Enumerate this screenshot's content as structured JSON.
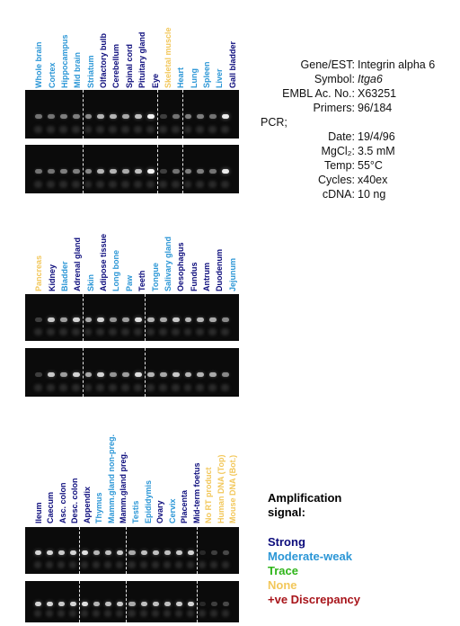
{
  "colors": {
    "strong": "#0c0c7c",
    "moderate_weak": "#2b96d6",
    "trace": "#2fb51a",
    "none": "#f2c75a",
    "discrepancy": "#a8141a"
  },
  "sections": [
    {
      "lanes": [
        {
          "label": "Whole brain",
          "level": "moderate_weak",
          "band": 0.35
        },
        {
          "label": "Cortex",
          "level": "moderate_weak",
          "band": 0.35
        },
        {
          "label": "Hippocampus",
          "level": "moderate_weak",
          "band": 0.4
        },
        {
          "label": "Mid brain",
          "level": "moderate_weak",
          "band": 0.4
        },
        {
          "label": "Striatum",
          "level": "moderate_weak",
          "band": 0.45
        },
        {
          "label": "Olfactory bulb",
          "level": "strong",
          "band": 0.65
        },
        {
          "label": "Cerebellum",
          "level": "strong",
          "band": 0.65
        },
        {
          "label": "Spinal cord",
          "level": "strong",
          "band": 0.6
        },
        {
          "label": "Pituitary gland",
          "level": "strong",
          "band": 0.7
        },
        {
          "label": "Eye",
          "level": "strong",
          "band": 0.95
        },
        {
          "label": "Skeletal muscle",
          "level": "none",
          "band": 0.1
        },
        {
          "label": "Heart",
          "level": "moderate_weak",
          "band": 0.35
        },
        {
          "label": "Lung",
          "level": "moderate_weak",
          "band": 0.4
        },
        {
          "label": "Spleen",
          "level": "moderate_weak",
          "band": 0.4
        },
        {
          "label": "Liver",
          "level": "moderate_weak",
          "band": 0.35
        },
        {
          "label": "Gall bladder",
          "level": "strong",
          "band": 0.9
        }
      ],
      "dividers_after": [
        3,
        9,
        11
      ]
    },
    {
      "lanes": [
        {
          "label": "Pancreas",
          "level": "none",
          "band": 0.1
        },
        {
          "label": "Kidney",
          "level": "strong",
          "band": 0.75
        },
        {
          "label": "Bladder",
          "level": "moderate_weak",
          "band": 0.55
        },
        {
          "label": "Adrenal gland",
          "level": "strong",
          "band": 0.8
        },
        {
          "label": "Skin",
          "level": "moderate_weak",
          "band": 0.6
        },
        {
          "label": "Adipose tissue",
          "level": "strong",
          "band": 0.8
        },
        {
          "label": "Long bone",
          "level": "moderate_weak",
          "band": 0.5
        },
        {
          "label": "Paw",
          "level": "moderate_weak",
          "band": 0.55
        },
        {
          "label": "Teeth",
          "level": "strong",
          "band": 0.85
        },
        {
          "label": "Tongue",
          "level": "moderate_weak",
          "band": 0.65
        },
        {
          "label": "Salivary gland",
          "level": "moderate_weak",
          "band": 0.6
        },
        {
          "label": "Oesophagus",
          "level": "strong",
          "band": 0.75
        },
        {
          "label": "Fundus",
          "level": "strong",
          "band": 0.65
        },
        {
          "label": "Antrum",
          "level": "strong",
          "band": 0.65
        },
        {
          "label": "Duodenum",
          "level": "strong",
          "band": 0.6
        },
        {
          "label": "Jejunum",
          "level": "moderate_weak",
          "band": 0.45
        }
      ],
      "dividers_after": [
        3,
        8
      ]
    },
    {
      "lanes": [
        {
          "label": "Ileum",
          "level": "strong",
          "band": 0.8
        },
        {
          "label": "Caecum",
          "level": "strong",
          "band": 0.8
        },
        {
          "label": "Asc. colon",
          "level": "strong",
          "band": 0.75
        },
        {
          "label": "Desc. colon",
          "level": "strong",
          "band": 0.8
        },
        {
          "label": "Appendix",
          "level": "strong",
          "band": 0.85
        },
        {
          "label": "Thymus",
          "level": "moderate_weak",
          "band": 0.65
        },
        {
          "label": "Mamm.gland non-preg.",
          "level": "moderate_weak",
          "band": 0.7
        },
        {
          "label": "Mamm.gland preg.",
          "level": "strong",
          "band": 0.75
        },
        {
          "label": "Testis",
          "level": "moderate_weak",
          "band": 0.6
        },
        {
          "label": "Epididymis",
          "level": "moderate_weak",
          "band": 0.7
        },
        {
          "label": "Ovary",
          "level": "strong",
          "band": 0.7
        },
        {
          "label": "Cervix",
          "level": "moderate_weak",
          "band": 0.7
        },
        {
          "label": "Placenta",
          "level": "strong",
          "band": 0.75
        },
        {
          "label": "Mid-term foetus",
          "level": "strong",
          "band": 0.8
        },
        {
          "label": "No RT product",
          "level": "none",
          "band": 0.0
        },
        {
          "label": "Human DNA (Top)",
          "level": "none",
          "band": 0.1
        },
        {
          "label": "Mouse DNA (Bot.)",
          "level": "none",
          "band": 0.15
        }
      ],
      "dividers_after": [
        3,
        7,
        13
      ]
    }
  ],
  "info": [
    {
      "key": "Gene/EST:",
      "value": "Integrin alpha 6",
      "italic": false
    },
    {
      "key": "Symbol:",
      "value": "Itga6",
      "italic": true
    },
    {
      "key": "EMBL Ac. No.:",
      "value": "X63251",
      "italic": false
    },
    {
      "key": "Primers:",
      "value": "96/184",
      "italic": false
    },
    {
      "key": "PCR;",
      "value": "",
      "italic": false
    },
    {
      "key": "Date:",
      "value": "19/4/96",
      "italic": false
    },
    {
      "key": "MgCl₂:",
      "value": "3.5 mM",
      "italic": false
    },
    {
      "key": "Temp:",
      "value": "55°C",
      "italic": false
    },
    {
      "key": "Cycles:",
      "value": "x40ex",
      "italic": false
    },
    {
      "key": "cDNA:",
      "value": "10 ng",
      "italic": false
    }
  ],
  "legend": {
    "title_line1": "Amplification",
    "title_line2": "signal:",
    "items": [
      {
        "label": "Strong",
        "level": "strong"
      },
      {
        "label": "Moderate-weak",
        "level": "moderate_weak"
      },
      {
        "label": "Trace",
        "level": "trace"
      },
      {
        "label": "None",
        "level": "none"
      },
      {
        "label": "+ve Discrepancy",
        "level": "discrepancy"
      }
    ]
  }
}
